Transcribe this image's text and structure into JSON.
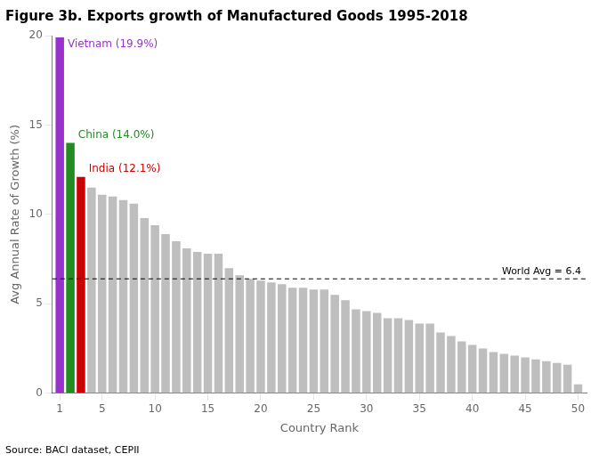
{
  "chart_data": {
    "type": "bar",
    "title": "Figure 3b. Exports growth of Manufactured Goods 1995-2018",
    "xlabel": "Country Rank",
    "ylabel": "Avg Annual Rate of Growth (%)",
    "source": "Source: BACI dataset, CEPII",
    "x": [
      1,
      2,
      3,
      4,
      5,
      6,
      7,
      8,
      9,
      10,
      11,
      12,
      13,
      14,
      15,
      16,
      17,
      18,
      19,
      20,
      21,
      22,
      23,
      24,
      25,
      26,
      27,
      28,
      29,
      30,
      31,
      32,
      33,
      34,
      35,
      36,
      37,
      38,
      39,
      40,
      41,
      42,
      43,
      44,
      45,
      46,
      47,
      48,
      49,
      50
    ],
    "values": [
      19.9,
      14.0,
      12.1,
      11.5,
      11.1,
      11.0,
      10.8,
      10.6,
      9.8,
      9.4,
      8.9,
      8.5,
      8.1,
      7.9,
      7.8,
      7.8,
      7.0,
      6.6,
      6.4,
      6.3,
      6.2,
      6.1,
      5.9,
      5.9,
      5.8,
      5.8,
      5.5,
      5.2,
      4.7,
      4.6,
      4.5,
      4.2,
      4.2,
      4.1,
      3.9,
      3.9,
      3.4,
      3.2,
      2.9,
      2.7,
      2.5,
      2.3,
      2.2,
      2.1,
      2.0,
      1.9,
      1.8,
      1.7,
      1.6,
      0.5
    ],
    "colors": [
      "#9932CC",
      "#228B22",
      "#CC0000",
      "#BEBEBE",
      "#BEBEBE",
      "#BEBEBE",
      "#BEBEBE",
      "#BEBEBE",
      "#BEBEBE",
      "#BEBEBE",
      "#BEBEBE",
      "#BEBEBE",
      "#BEBEBE",
      "#BEBEBE",
      "#BEBEBE",
      "#BEBEBE",
      "#BEBEBE",
      "#BEBEBE",
      "#BEBEBE",
      "#BEBEBE",
      "#BEBEBE",
      "#BEBEBE",
      "#BEBEBE",
      "#BEBEBE",
      "#BEBEBE",
      "#BEBEBE",
      "#BEBEBE",
      "#BEBEBE",
      "#BEBEBE",
      "#BEBEBE",
      "#BEBEBE",
      "#BEBEBE",
      "#BEBEBE",
      "#BEBEBE",
      "#BEBEBE",
      "#BEBEBE",
      "#BEBEBE",
      "#BEBEBE",
      "#BEBEBE",
      "#BEBEBE",
      "#BEBEBE",
      "#BEBEBE",
      "#BEBEBE",
      "#BEBEBE",
      "#BEBEBE",
      "#BEBEBE",
      "#BEBEBE",
      "#BEBEBE",
      "#BEBEBE",
      "#BEBEBE"
    ],
    "annotations": [
      "Vietnam (19.9%)",
      "China (14.0%)",
      "India (12.1%)"
    ],
    "hline": {
      "value": 6.4,
      "label": "World Avg = 6.4"
    },
    "xlim": [
      0.3,
      50.8
    ],
    "xticks": [
      1,
      5,
      10,
      15,
      20,
      25,
      30,
      35,
      40,
      45,
      50
    ],
    "ylim": [
      0,
      20
    ],
    "yticks": [
      0,
      5,
      10,
      15,
      20
    ],
    "grid": false,
    "legend": false
  }
}
